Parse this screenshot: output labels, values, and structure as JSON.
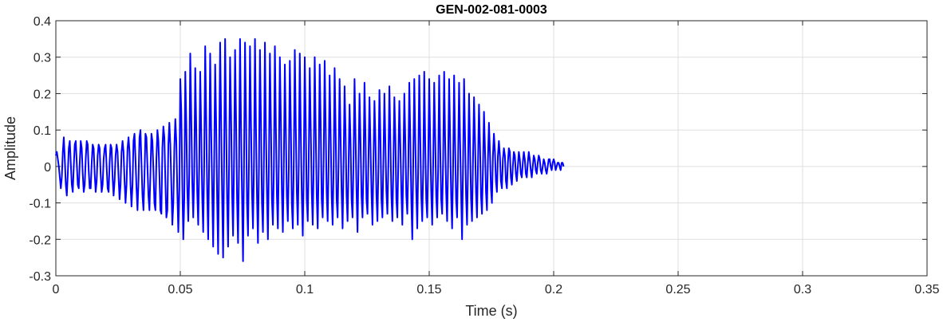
{
  "chart_data": {
    "type": "line",
    "title": "GEN-002-081-0003",
    "xlabel": "Time (s)",
    "ylabel": "Amplitude",
    "xlim": [
      0,
      0.35
    ],
    "ylim": [
      -0.3,
      0.4
    ],
    "xticks": [
      0,
      0.05,
      0.1,
      0.15,
      0.2,
      0.25,
      0.3,
      0.35
    ],
    "yticks": [
      -0.3,
      -0.2,
      -0.1,
      0,
      0.1,
      0.2,
      0.3,
      0.4
    ],
    "xtick_labels": [
      "0",
      "0.05",
      "0.1",
      "0.15",
      "0.2",
      "0.25",
      "0.3",
      "0.35"
    ],
    "ytick_labels": [
      "-0.3",
      "-0.2",
      "-0.1",
      "0",
      "0.1",
      "0.2",
      "0.3",
      "0.4"
    ],
    "grid": true,
    "line_color": "#0000ff",
    "series": [
      {
        "sample_interval_s": 0.0004,
        "x_start_s": 0,
        "values": [
          0.03,
          0.04,
          0.02,
          0.0,
          -0.03,
          -0.06,
          -0.03,
          0.04,
          0.08,
          0.02,
          -0.05,
          -0.08,
          -0.02,
          0.05,
          0.07,
          0.01,
          -0.05,
          -0.07,
          0.0,
          0.06,
          0.07,
          0.01,
          -0.05,
          -0.06,
          0.01,
          0.07,
          0.05,
          -0.02,
          -0.07,
          -0.05,
          0.02,
          0.07,
          0.06,
          -0.01,
          -0.06,
          -0.06,
          0.01,
          0.06,
          0.05,
          -0.02,
          -0.07,
          -0.04,
          0.03,
          0.06,
          0.05,
          -0.02,
          -0.07,
          -0.05,
          0.02,
          0.05,
          0.06,
          0.0,
          -0.06,
          -0.07,
          0.01,
          0.06,
          0.05,
          -0.03,
          -0.08,
          -0.04,
          0.03,
          0.06,
          0.04,
          -0.03,
          -0.09,
          -0.05,
          0.04,
          0.07,
          0.04,
          -0.04,
          -0.1,
          -0.05,
          0.05,
          0.08,
          0.04,
          -0.05,
          -0.11,
          -0.05,
          0.07,
          0.09,
          0.02,
          -0.06,
          -0.12,
          -0.04,
          0.08,
          0.1,
          0.01,
          -0.08,
          -0.12,
          -0.03,
          0.09,
          0.08,
          0.0,
          -0.08,
          -0.12,
          -0.02,
          0.09,
          0.07,
          -0.01,
          -0.1,
          -0.12,
          0.02,
          0.1,
          0.07,
          -0.02,
          -0.12,
          -0.13,
          0.05,
          0.11,
          0.08,
          -0.04,
          -0.14,
          -0.12,
          0.06,
          0.12,
          0.06,
          -0.05,
          -0.16,
          -0.1,
          0.05,
          0.13,
          0.07,
          -0.07,
          -0.18,
          -0.06,
          0.24,
          0.15,
          -0.05,
          -0.2,
          -0.09,
          0.26,
          0.12,
          -0.06,
          -0.15,
          -0.02,
          0.31,
          0.14,
          -0.04,
          -0.14,
          -0.02,
          0.27,
          0.11,
          -0.07,
          -0.16,
          0.0,
          0.26,
          0.1,
          -0.08,
          -0.18,
          0.01,
          0.33,
          0.13,
          -0.07,
          -0.2,
          0.02,
          0.31,
          0.1,
          -0.06,
          -0.22,
          0.01,
          0.28,
          0.12,
          -0.09,
          -0.24,
          0.03,
          0.34,
          0.13,
          -0.08,
          -0.25,
          0.02,
          0.35,
          0.12,
          -0.09,
          -0.22,
          0.01,
          0.3,
          0.14,
          -0.07,
          -0.19,
          0.02,
          0.32,
          0.13,
          -0.09,
          -0.21,
          0.0,
          0.35,
          0.11,
          -0.08,
          -0.26,
          0.01,
          0.34,
          0.14,
          -0.1,
          -0.19,
          0.02,
          0.33,
          0.12,
          -0.07,
          -0.17,
          0.01,
          0.35,
          0.11,
          -0.08,
          -0.21,
          0.0,
          0.32,
          0.13,
          -0.1,
          -0.18,
          0.02,
          0.34,
          0.1,
          -0.07,
          -0.2,
          0.01,
          0.31,
          0.12,
          -0.09,
          -0.16,
          0.0,
          0.33,
          0.11,
          -0.08,
          -0.17,
          0.02,
          0.3,
          0.13,
          -0.07,
          -0.18,
          0.01,
          0.28,
          0.1,
          -0.08,
          -0.15,
          0.0,
          0.29,
          0.12,
          -0.1,
          -0.17,
          0.02,
          0.32,
          0.11,
          -0.07,
          -0.16,
          0.01,
          0.31,
          0.1,
          -0.08,
          -0.19,
          0.0,
          0.3,
          0.12,
          -0.09,
          -0.15,
          0.02,
          0.27,
          0.11,
          -0.07,
          -0.16,
          0.01,
          0.3,
          0.1,
          -0.08,
          -0.17,
          0.0,
          0.28,
          0.12,
          -0.09,
          -0.14,
          0.02,
          0.29,
          0.11,
          -0.07,
          -0.15,
          0.01,
          0.25,
          0.09,
          -0.08,
          -0.16,
          0.0,
          0.27,
          0.1,
          -0.09,
          -0.14,
          0.02,
          0.24,
          0.08,
          -0.07,
          -0.17,
          0.01,
          0.22,
          0.09,
          -0.08,
          -0.15,
          0.0,
          0.17,
          0.07,
          -0.09,
          -0.14,
          0.02,
          0.24,
          0.08,
          -0.07,
          -0.18,
          0.01,
          0.2,
          0.07,
          -0.08,
          -0.14,
          0.0,
          0.23,
          0.08,
          -0.09,
          -0.13,
          0.02,
          0.19,
          0.06,
          -0.07,
          -0.16,
          0.01,
          0.18,
          0.07,
          -0.08,
          -0.15,
          0.0,
          0.21,
          0.08,
          -0.09,
          -0.14,
          0.02,
          0.2,
          0.06,
          -0.07,
          -0.13,
          0.01,
          0.22,
          0.07,
          -0.08,
          -0.15,
          0.0,
          0.19,
          0.08,
          -0.09,
          -0.14,
          0.02,
          0.18,
          0.06,
          -0.07,
          -0.16,
          0.01,
          0.2,
          0.07,
          -0.08,
          -0.13,
          0.0,
          0.23,
          0.08,
          -0.09,
          -0.2,
          0.02,
          0.24,
          0.07,
          -0.07,
          -0.17,
          0.01,
          0.25,
          0.08,
          -0.08,
          -0.15,
          0.0,
          0.26,
          0.06,
          -0.09,
          -0.14,
          0.02,
          0.24,
          0.07,
          -0.07,
          -0.16,
          0.01,
          0.23,
          0.08,
          -0.08,
          -0.14,
          0.0,
          0.25,
          0.06,
          -0.09,
          -0.13,
          0.02,
          0.26,
          0.07,
          -0.07,
          -0.15,
          0.01,
          0.24,
          0.08,
          -0.08,
          -0.17,
          0.0,
          0.25,
          0.06,
          -0.09,
          -0.14,
          0.02,
          0.23,
          0.07,
          -0.07,
          -0.2,
          0.01,
          0.24,
          0.08,
          -0.08,
          -0.16,
          0.0,
          0.2,
          0.06,
          -0.09,
          -0.15,
          0.02,
          0.19,
          0.07,
          -0.07,
          -0.14,
          0.01,
          0.17,
          0.06,
          -0.08,
          -0.13,
          0.0,
          0.15,
          0.05,
          -0.07,
          -0.12,
          0.02,
          0.12,
          0.04,
          -0.06,
          -0.1,
          0.03,
          0.09,
          0.04,
          -0.04,
          -0.07,
          0.03,
          0.07,
          0.03,
          -0.04,
          -0.06,
          0.02,
          0.05,
          0.03,
          -0.04,
          -0.06,
          0.01,
          0.05,
          0.04,
          -0.03,
          -0.05,
          0.0,
          0.04,
          0.03,
          -0.02,
          -0.04,
          0.0,
          0.04,
          0.02,
          -0.02,
          -0.03,
          0.01,
          0.04,
          0.02,
          -0.02,
          -0.03,
          0.01,
          0.04,
          0.02,
          -0.01,
          -0.03,
          0.0,
          0.03,
          0.02,
          -0.01,
          -0.02,
          0.01,
          0.03,
          0.02,
          -0.01,
          -0.02,
          0.0,
          0.02,
          0.01,
          -0.01,
          -0.02,
          0.0,
          0.02,
          0.02,
          0.0,
          -0.01,
          0.01,
          0.02,
          0.01,
          -0.01,
          0.0,
          0.01,
          0.01,
          0.0,
          -0.01,
          0.01,
          0.01,
          0.0
        ]
      }
    ]
  }
}
